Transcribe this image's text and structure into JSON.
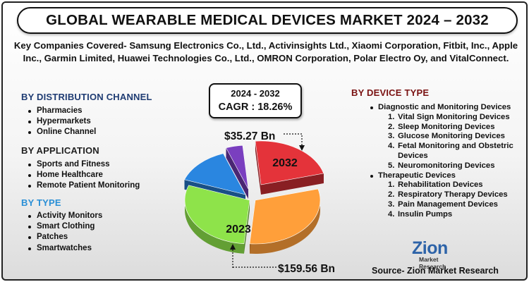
{
  "header": {
    "title": "GLOBAL WEARABLE MEDICAL DEVICES MARKET 2024 – 2032"
  },
  "companies": "Key Companies Covered- Samsung Electronics Co., Ltd., Activinsights Ltd., Xiaomi Corporation, Fitbit, Inc., Apple Inc., Garmin Limited, Huawei Technologies Co., Ltd., OMRON Corporation, Polar Electro Oy, and VitalConnect.",
  "distribution": {
    "heading": "BY DISTRIBUTION CHANNEL",
    "items": [
      "Pharmacies",
      "Hypermarkets",
      "Online Channel"
    ]
  },
  "application": {
    "heading": "BY APPLICATION",
    "items": [
      "Sports and Fitness",
      "Home Healthcare",
      "Remote Patient Monitoring"
    ]
  },
  "type": {
    "heading": "BY TYPE",
    "items": [
      "Activity Monitors",
      "Smart Clothing",
      "Patches",
      "Smartwatches"
    ]
  },
  "device_type": {
    "heading": "BY DEVICE TYPE",
    "groups": [
      {
        "label": "Diagnostic and Monitoring Devices",
        "items": [
          {
            "num": "1.",
            "label": "Vital Sign Monitoring Devices"
          },
          {
            "num": "2.",
            "label": "Sleep Monitoring Devices"
          },
          {
            "num": "3.",
            "label": "Glucose Monitoring Devices"
          },
          {
            "num": "4.",
            "label": "Fetal Monitoring and Obstetric Devices"
          },
          {
            "num": "5.",
            "label": "Neuromonitoring Devices"
          }
        ]
      },
      {
        "label": "Therapeutic Devices",
        "items": [
          {
            "num": "1.",
            "label": "Rehabilitation Devices"
          },
          {
            "num": "2.",
            "label": "Respiratory Therapy Devices"
          },
          {
            "num": "3.",
            "label": "Pain Management Devices"
          },
          {
            "num": "4.",
            "label": "Insulin Pumps"
          }
        ]
      }
    ]
  },
  "cagr": {
    "period": "2024 - 2032",
    "value": "CAGR : 18.26%"
  },
  "chart_data": {
    "type": "pie",
    "slices": [
      {
        "label": "2032",
        "value": 159.56,
        "color": "#ff9f3a"
      },
      {
        "label": "2023",
        "value": 35.27,
        "color": "#8ee34a"
      }
    ],
    "decorative_slices": [
      {
        "color": "#e4333a"
      },
      {
        "color": "#ff9f3a"
      },
      {
        "color": "#8ee34a"
      },
      {
        "color": "#2a86e0"
      },
      {
        "color": "#7a3fbf"
      }
    ],
    "value_labels": {
      "top": "$35.27 Bn",
      "bottom": "$159.56 Bn"
    },
    "slice_labels": {
      "upper": "2032",
      "lower": "2023"
    }
  },
  "logo": {
    "name": "Zion",
    "sub": "Market Research"
  },
  "source": "Source- Zion Market Research"
}
